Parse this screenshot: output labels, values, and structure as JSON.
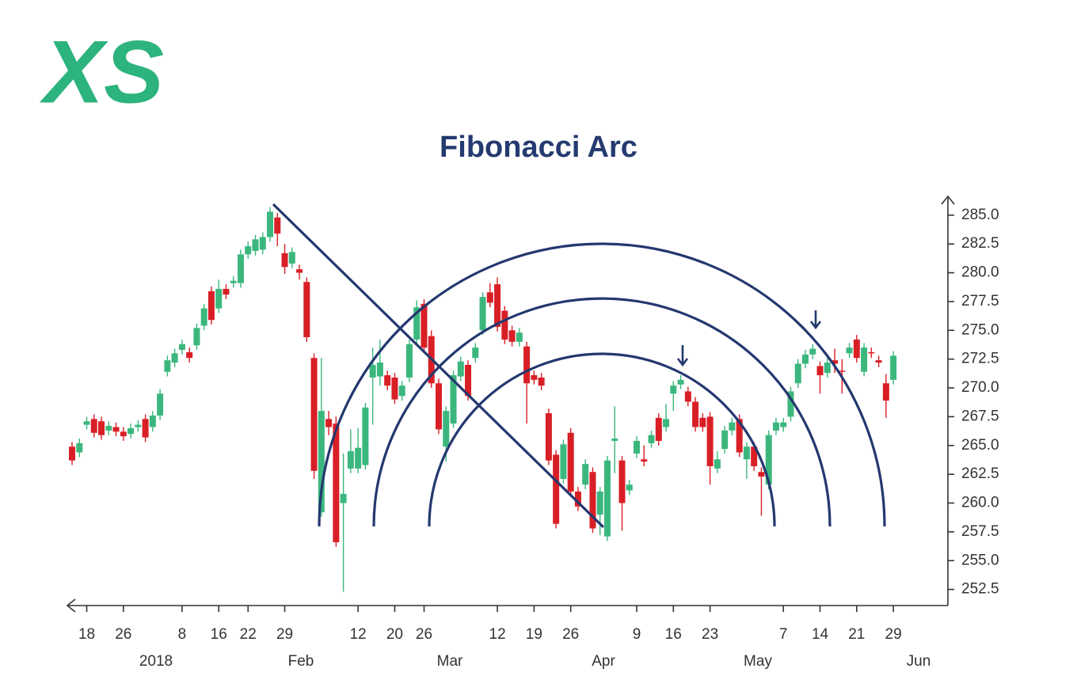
{
  "logo": "XS",
  "chart_data": {
    "type": "candlestick",
    "title": "Fibonacci Arc",
    "categories": [
      null,
      null,
      "18",
      null,
      null,
      null,
      null,
      "26",
      null,
      null,
      null,
      null,
      null,
      null,
      null,
      "8",
      null,
      null,
      null,
      null,
      "16",
      null,
      null,
      null,
      "22",
      null,
      null,
      null,
      null,
      "29",
      null,
      null,
      null,
      null,
      null,
      null,
      null,
      null,
      null,
      "12",
      null,
      null,
      null,
      null,
      "20",
      null,
      null,
      null,
      "26",
      null,
      null,
      null,
      null,
      null,
      null,
      null,
      null,
      null,
      "12",
      null,
      null,
      null,
      null,
      "19",
      null,
      null,
      null,
      null,
      "26",
      null,
      null,
      null,
      null,
      null,
      null,
      null,
      null,
      "9",
      null,
      null,
      null,
      null,
      "16",
      null,
      null,
      null,
      null,
      "23",
      null,
      null,
      null,
      null,
      null,
      null,
      null,
      null,
      null,
      "7",
      null,
      null,
      null,
      null,
      "14",
      null,
      null,
      null,
      null,
      "21",
      null,
      null,
      null,
      null,
      "29"
    ],
    "x_groups": [
      "2018",
      "Feb",
      "Mar",
      "Apr",
      "May",
      "Jun"
    ],
    "open": [
      264.9,
      264.4,
      266.8,
      267.3,
      267.1,
      266.3,
      266.6,
      266.2,
      266.0,
      266.6,
      267.3,
      266.6,
      267.6,
      271.4,
      272.2,
      273.3,
      273.1,
      273.7,
      275.4,
      278.4,
      276.9,
      278.6,
      279.1,
      279.1,
      281.6,
      281.9,
      282.0,
      283.1,
      284.8,
      281.7,
      280.8,
      280.3,
      279.2,
      272.6,
      259.2,
      267.3,
      266.9,
      260.0,
      263.0,
      263.0,
      263.3,
      270.9,
      271.0,
      271.1,
      270.9,
      269.3,
      270.9,
      274.2,
      277.3,
      274.5,
      270.4,
      264.9,
      266.9,
      271.0,
      272.0,
      272.6,
      275.0,
      278.3,
      279.0,
      276.7,
      275.0,
      274.0,
      273.6,
      271.1,
      270.9,
      267.8,
      264.2,
      262.1,
      266.1,
      261.0,
      261.6,
      262.7,
      259.0,
      257.1,
      265.4,
      263.7,
      261.1,
      264.3,
      263.8,
      265.2,
      267.4,
      266.6,
      269.5,
      270.3,
      269.7,
      268.8,
      267.4,
      267.5,
      263.0,
      264.7,
      266.3,
      267.3,
      263.8,
      264.9,
      262.7,
      261.6,
      266.3,
      266.6,
      267.5,
      270.4,
      272.1,
      272.9,
      271.9,
      271.3,
      272.4,
      271.5,
      273.0,
      274.2,
      271.4,
      273.1,
      272.4,
      270.4,
      270.7
    ],
    "high": [
      265.3,
      265.6,
      267.5,
      267.7,
      267.5,
      267.1,
      267.0,
      266.6,
      266.9,
      267.2,
      267.7,
      268.0,
      269.9,
      272.8,
      273.4,
      274.2,
      273.5,
      275.6,
      277.3,
      278.8,
      279.4,
      279.0,
      279.7,
      282.0,
      282.7,
      283.3,
      283.5,
      285.7,
      285.2,
      282.5,
      282.2,
      280.7,
      279.6,
      273.0,
      272.6,
      268.0,
      267.5,
      264.3,
      266.4,
      266.5,
      268.7,
      273.5,
      274.2,
      271.5,
      271.3,
      270.6,
      274.2,
      277.6,
      277.7,
      275.0,
      270.8,
      268.4,
      271.5,
      272.7,
      272.4,
      273.9,
      278.3,
      279.1,
      279.6,
      277.1,
      275.4,
      275.2,
      274.0,
      271.5,
      271.3,
      268.2,
      264.6,
      265.5,
      266.5,
      261.4,
      263.8,
      263.1,
      261.4,
      264.1,
      268.4,
      264.1,
      262.0,
      265.8,
      265.0,
      266.3,
      267.8,
      268.6,
      270.6,
      271.1,
      270.1,
      269.2,
      267.8,
      267.9,
      264.5,
      266.7,
      267.4,
      267.7,
      265.3,
      265.3,
      263.1,
      266.3,
      267.4,
      267.4,
      270.1,
      272.5,
      273.3,
      273.8,
      272.3,
      272.6,
      273.4,
      272.5,
      273.9,
      274.6,
      273.9,
      273.5,
      272.8,
      271.2,
      273.2
    ],
    "low": [
      263.3,
      264.0,
      266.4,
      265.7,
      265.5,
      265.9,
      265.8,
      265.4,
      265.6,
      266.2,
      265.3,
      266.2,
      267.2,
      271.0,
      271.8,
      272.9,
      272.2,
      273.3,
      275.0,
      275.5,
      276.5,
      277.7,
      278.7,
      278.7,
      281.2,
      281.5,
      281.6,
      282.7,
      282.3,
      279.9,
      280.4,
      279.4,
      274.0,
      262.1,
      258.8,
      265.9,
      256.2,
      252.3,
      262.6,
      262.6,
      262.9,
      266.8,
      270.2,
      269.8,
      268.6,
      268.9,
      270.5,
      273.8,
      273.1,
      270.0,
      266.0,
      263.6,
      266.5,
      270.6,
      268.9,
      272.2,
      274.6,
      277.0,
      274.9,
      273.8,
      273.6,
      273.6,
      266.9,
      270.3,
      269.8,
      263.3,
      257.8,
      261.7,
      260.6,
      259.3,
      261.2,
      257.4,
      257.2,
      256.7,
      262.6,
      257.6,
      260.7,
      263.9,
      263.2,
      264.8,
      265.0,
      266.2,
      268.0,
      269.9,
      268.4,
      266.2,
      266.2,
      261.6,
      262.6,
      264.3,
      265.9,
      264.0,
      262.1,
      262.8,
      258.9,
      261.2,
      265.9,
      266.2,
      267.1,
      270.0,
      271.7,
      272.5,
      269.5,
      270.9,
      271.3,
      269.5,
      272.6,
      272.2,
      271.0,
      272.6,
      271.8,
      267.4,
      270.3
    ],
    "close": [
      263.7,
      265.2,
      267.1,
      266.1,
      265.9,
      266.7,
      266.2,
      265.8,
      266.5,
      266.8,
      265.7,
      267.6,
      269.5,
      272.4,
      273.0,
      273.8,
      272.6,
      275.2,
      276.9,
      275.9,
      278.6,
      278.1,
      279.3,
      281.6,
      282.3,
      282.9,
      283.1,
      285.3,
      283.4,
      280.5,
      281.8,
      280.0,
      274.4,
      262.8,
      268.0,
      266.6,
      256.6,
      260.8,
      264.5,
      264.8,
      268.3,
      272.0,
      272.2,
      270.2,
      269.0,
      270.2,
      273.8,
      277.0,
      273.5,
      270.4,
      266.4,
      268.0,
      271.1,
      272.3,
      269.3,
      273.5,
      277.9,
      277.4,
      275.3,
      274.2,
      274.0,
      274.8,
      270.4,
      270.7,
      270.2,
      263.7,
      258.2,
      265.1,
      261.0,
      259.7,
      263.4,
      257.8,
      261.0,
      263.7,
      265.6,
      260.0,
      261.6,
      265.4,
      263.6,
      265.9,
      265.4,
      267.3,
      270.2,
      270.7,
      268.8,
      266.6,
      266.6,
      263.2,
      263.8,
      266.3,
      267.0,
      264.4,
      264.9,
      263.2,
      262.3,
      265.9,
      267.0,
      267.0,
      269.7,
      272.1,
      272.9,
      273.4,
      271.1,
      272.2,
      272.1,
      271.4,
      273.5,
      272.6,
      273.5,
      273.0,
      272.2,
      268.9,
      272.8
    ],
    "up_color": "#3bb77e",
    "down_color": "#d91f26",
    "ylim": [
      251.1,
      286.5
    ],
    "yticks": [
      {
        "value": 252.5,
        "label": "252.5"
      },
      {
        "value": 255,
        "label": "255.0"
      },
      {
        "value": 257.5,
        "label": "257.5"
      },
      {
        "value": 260,
        "label": "260.0"
      },
      {
        "value": 262.5,
        "label": "262.5"
      },
      {
        "value": 265,
        "label": "265.0"
      },
      {
        "value": 267.5,
        "label": "267.5"
      },
      {
        "value": 270,
        "label": "270.0"
      },
      {
        "value": 272.5,
        "label": "272.5"
      },
      {
        "value": 275,
        "label": "275.0"
      },
      {
        "value": 277.5,
        "label": "277.5"
      },
      {
        "value": 280,
        "label": "280.0"
      },
      {
        "value": 282.5,
        "label": "282.5"
      },
      {
        "value": 285,
        "label": "285.0"
      }
    ],
    "grid": false
  }
}
